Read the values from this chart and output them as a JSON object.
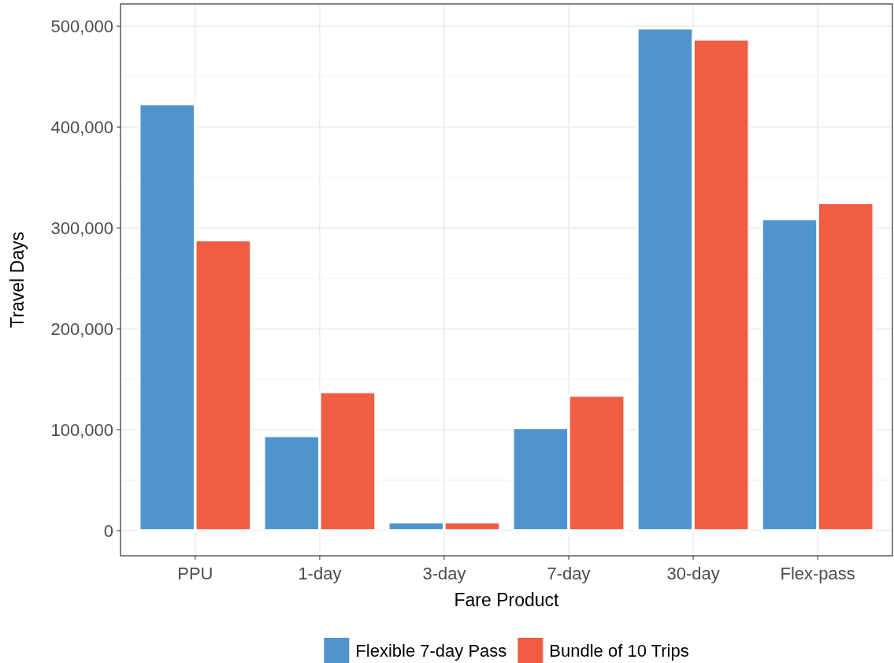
{
  "chart_data": {
    "type": "bar",
    "xlabel": "Fare Product",
    "ylabel": "Travel Days",
    "categories": [
      "PPU",
      "1-day",
      "3-day",
      "7-day",
      "30-day",
      "Flex-pass"
    ],
    "series": [
      {
        "name": "Flexible 7-day Pass",
        "color": "#4f94cf",
        "values": [
          423000,
          94000,
          8500,
          102000,
          498000,
          309000
        ]
      },
      {
        "name": "Bundle of 10 Trips",
        "color": "#ef5d43",
        "values": [
          288000,
          137500,
          8500,
          134000,
          487000,
          325000
        ]
      }
    ],
    "ylim": [
      -25000,
      522000
    ],
    "yticks": [
      {
        "value": 0,
        "label": "0"
      },
      {
        "value": 100000,
        "label": "100,000"
      },
      {
        "value": 200000,
        "label": "200,000"
      },
      {
        "value": 300000,
        "label": "300,000"
      },
      {
        "value": 400000,
        "label": "400,000"
      },
      {
        "value": 500000,
        "label": "500,000"
      }
    ],
    "grid": true,
    "legend": "bottom"
  }
}
